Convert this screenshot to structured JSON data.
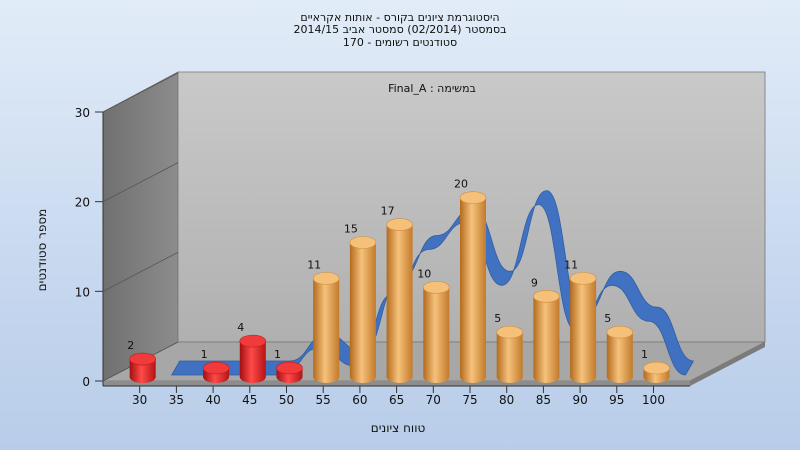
{
  "chart_data": {
    "type": "bar",
    "title_lines": [
      "היסטוגרמת ציונים בקורס - אותות אקראיים",
      "בסמסטר  (02/2014)  סמסטר אביב 2014/15",
      "סטודנטים רשומים - 170"
    ],
    "subtitle": "במשימה : Final_A",
    "xlabel": "טווח ציונים",
    "ylabel": "מספר סטודנטים",
    "x_ticks": [
      "30",
      "35",
      "40",
      "45",
      "50",
      "55",
      "60",
      "65",
      "70",
      "75",
      "80",
      "85",
      "90",
      "95",
      "100"
    ],
    "y_ticks": [
      "0",
      "10",
      "20",
      "30"
    ],
    "ylim": [
      0,
      30
    ],
    "bars": [
      {
        "x": 30,
        "value": 2,
        "label": "2",
        "color_class": "red"
      },
      {
        "x": 40,
        "value": 1,
        "label": "1",
        "color_class": "red"
      },
      {
        "x": 45,
        "value": 4,
        "label": "4",
        "color_class": "red"
      },
      {
        "x": 50,
        "value": 1,
        "label": "1",
        "color_class": "red"
      },
      {
        "x": 55,
        "value": 11,
        "label": "11",
        "color_class": "orange"
      },
      {
        "x": 60,
        "value": 15,
        "label": "15",
        "color_class": "orange"
      },
      {
        "x": 65,
        "value": 17,
        "label": "17",
        "color_class": "orange"
      },
      {
        "x": 70,
        "value": 10,
        "label": "10",
        "color_class": "orange"
      },
      {
        "x": 75,
        "value": 20,
        "label": "20",
        "color_class": "orange"
      },
      {
        "x": 80,
        "value": 5,
        "label": "5",
        "color_class": "orange"
      },
      {
        "x": 85,
        "value": 9,
        "label": "9",
        "color_class": "orange"
      },
      {
        "x": 90,
        "value": 11,
        "label": "11",
        "color_class": "orange"
      },
      {
        "x": 95,
        "value": 5,
        "label": "5",
        "color_class": "orange"
      },
      {
        "x": 100,
        "value": 1,
        "label": "1",
        "color_class": "orange"
      }
    ],
    "trend_series": {
      "x": [
        30,
        35,
        40,
        45,
        50,
        55,
        60,
        65,
        70,
        75,
        80,
        85,
        90,
        95,
        100
      ],
      "values": [
        0,
        0,
        0,
        0,
        3,
        1,
        9,
        14,
        17,
        10,
        19,
        5,
        10,
        6,
        0
      ]
    },
    "grid": false,
    "colors": {
      "red_bar": "#dd1c1c",
      "orange_bar": "#e9a24e",
      "trend_ribbon": "#3a6fc2",
      "back_wall": "#bcbcbc",
      "side_wall": "#8a8a8a",
      "floor": "#a9a9a9"
    }
  }
}
